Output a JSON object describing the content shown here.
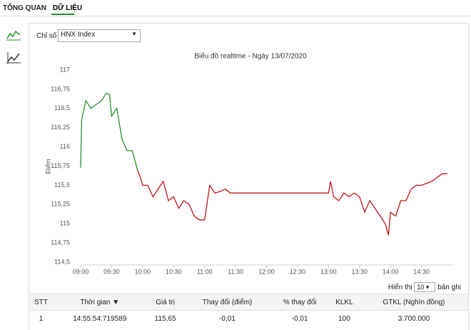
{
  "tabs": [
    "TỔNG QUAN",
    "DỮ LIỆU"
  ],
  "filter": {
    "label": "Chỉ số",
    "selected": "HNX Index"
  },
  "chart_data": {
    "type": "line",
    "title": "Biểu đồ realtime - Ngày 13/07/2020",
    "y_label": "Điểm",
    "x": [
      "09:00",
      "09:01",
      "09:05",
      "09:10",
      "09:15",
      "09:20",
      "09:25",
      "09:28",
      "09:30",
      "09:35",
      "09:40",
      "09:45",
      "09:50",
      "09:55",
      "09:58",
      "10:00",
      "10:05",
      "10:10",
      "10:15",
      "10:20",
      "10:25",
      "10:30",
      "10:35",
      "10:40",
      "10:45",
      "10:50",
      "10:55",
      "11:00",
      "11:05",
      "11:10",
      "11:15",
      "11:20",
      "11:25",
      "11:30",
      "13:00",
      "13:02",
      "13:05",
      "13:10",
      "13:15",
      "13:20",
      "13:25",
      "13:30",
      "13:35",
      "13:40",
      "13:45",
      "13:50",
      "13:55",
      "13:58",
      "14:00",
      "14:05",
      "14:10",
      "14:15",
      "14:20",
      "14:25",
      "14:30",
      "14:40",
      "14:50",
      "14:55"
    ],
    "series": [
      {
        "color": "#2e8b2e",
        "values": [
          115.73,
          116.35,
          116.6,
          116.5,
          116.55,
          116.6,
          116.7,
          116.68,
          116.4,
          116.5,
          116.1,
          115.95,
          115.95,
          115.7,
          null,
          null,
          null,
          null,
          null,
          null,
          null,
          null,
          null,
          null,
          null,
          null,
          null,
          null,
          null,
          null,
          null,
          null,
          null,
          null,
          null,
          null,
          null,
          null,
          null,
          null,
          null,
          null,
          null,
          null,
          null,
          null,
          null,
          null,
          null,
          null,
          null,
          null,
          null,
          null,
          null,
          null,
          null,
          null
        ]
      },
      {
        "color": "#c0141c",
        "values": [
          null,
          null,
          null,
          null,
          null,
          null,
          null,
          null,
          null,
          null,
          null,
          null,
          null,
          115.7,
          115.6,
          115.5,
          115.5,
          115.35,
          115.45,
          115.55,
          115.3,
          115.35,
          115.2,
          115.3,
          115.25,
          115.1,
          115.05,
          115.05,
          115.5,
          115.4,
          115.42,
          115.45,
          115.4,
          115.4,
          115.4,
          115.55,
          115.35,
          115.3,
          115.4,
          115.35,
          115.4,
          115.35,
          115.15,
          115.3,
          115.2,
          115.1,
          115.0,
          114.85,
          115.15,
          115.1,
          115.3,
          115.3,
          115.45,
          115.5,
          115.5,
          115.55,
          115.65,
          115.65
        ]
      }
    ],
    "xlim": [
      "09:00",
      "15:00"
    ],
    "xticks": [
      "09:00",
      "09:30",
      "10:00",
      "10:30",
      "11:00",
      "11:30",
      "12:00",
      "12:30",
      "13:00",
      "13:30",
      "14:00",
      "14:30"
    ],
    "ylim": [
      114.5,
      117
    ],
    "yticks": [
      {
        "value": 114.5,
        "label": "114,5"
      },
      {
        "value": 114.75,
        "label": "114,75"
      },
      {
        "value": 115,
        "label": "115"
      },
      {
        "value": 115.25,
        "label": "115,25"
      },
      {
        "value": 115.5,
        "label": "115,5"
      },
      {
        "value": 115.75,
        "label": "115,75"
      },
      {
        "value": 116,
        "label": "116"
      },
      {
        "value": 116.25,
        "label": "116,25"
      },
      {
        "value": 116.5,
        "label": "116,5"
      },
      {
        "value": 116.75,
        "label": "116,75"
      },
      {
        "value": 117,
        "label": "117"
      }
    ],
    "grid": false
  },
  "paging": {
    "label_before": "Hiển thị",
    "selected": "10",
    "label_after": "bản ghi"
  },
  "table": {
    "headers": [
      "STT",
      "Thời gian ▼",
      "Giá trị",
      "Thay đổi (điểm)",
      "% thay đổi",
      "KLKL",
      "GTKL (Nghìn đồng)"
    ],
    "rows": [
      [
        "1",
        "14:55:54:719589",
        "115,65",
        "-0,01",
        "-0,01",
        "100",
        "3.700.000"
      ]
    ]
  }
}
